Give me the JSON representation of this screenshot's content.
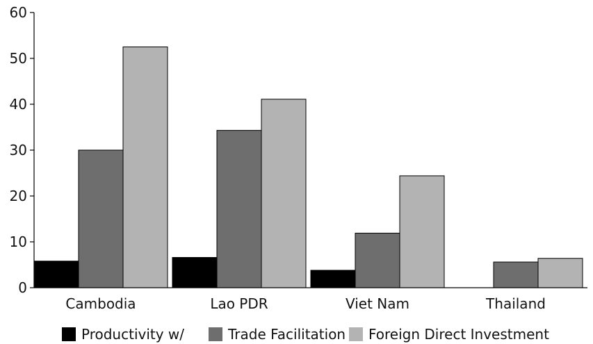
{
  "chart_data": {
    "type": "bar",
    "title": "",
    "xlabel": "",
    "ylabel": "",
    "categories": [
      "Cambodia",
      "Lao PDR",
      "Viet Nam",
      "Thailand"
    ],
    "series": [
      {
        "name": "Productivity w/",
        "color": "#000000",
        "values": [
          5.8,
          6.6,
          3.8,
          0
        ]
      },
      {
        "name": "Trade Facilitation",
        "color": "#6e6e6e",
        "values": [
          30,
          34.3,
          11.9,
          5.6
        ]
      },
      {
        "name": "Foreign Direct Investment",
        "color": "#b3b3b3",
        "values": [
          52.5,
          41.1,
          24.4,
          6.4
        ]
      }
    ],
    "ylim": [
      0,
      60
    ],
    "yticks": [
      "0",
      "10",
      "20",
      "30",
      "40",
      "50",
      "60"
    ],
    "grid": false,
    "legend_position": "bottom"
  }
}
